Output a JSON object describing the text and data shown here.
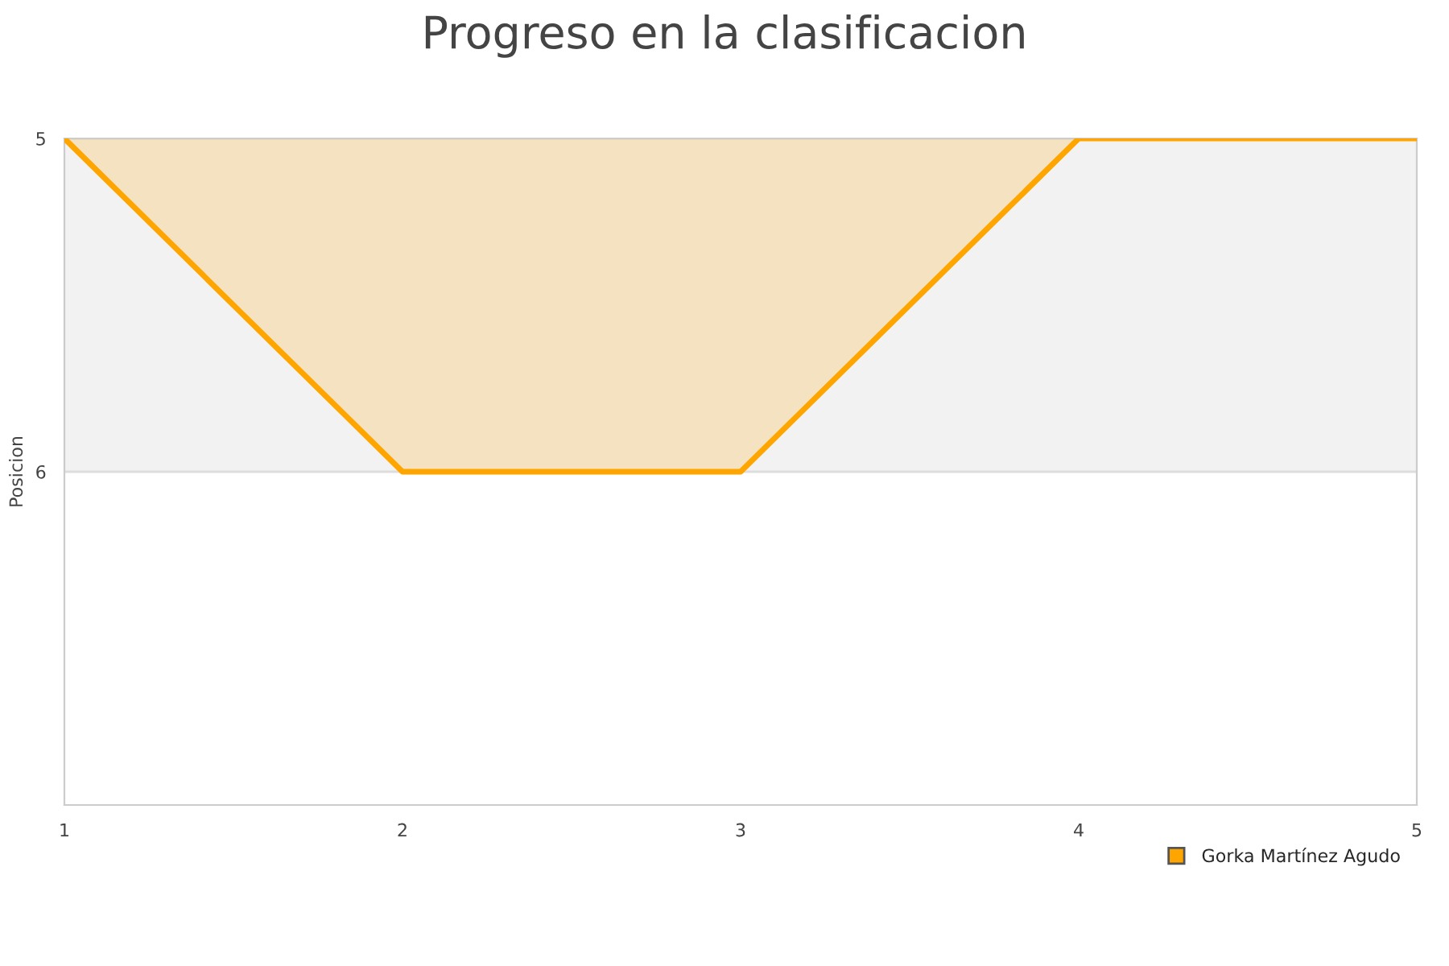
{
  "chart_data": {
    "type": "area",
    "title": "Progreso en la clasificacion",
    "ylabel": "Posicion",
    "x": [
      1,
      2,
      3,
      4,
      5
    ],
    "series": [
      {
        "name": "Gorka Martínez Agudo",
        "color": "#ffa500",
        "values": [
          5,
          6,
          6,
          5,
          5
        ]
      }
    ],
    "xlim": [
      1,
      5
    ],
    "xticks": [
      1,
      2,
      3,
      4,
      5
    ],
    "ylim": [
      7,
      5
    ],
    "yticks": [
      5,
      6
    ],
    "bands": [
      {
        "axis": "y",
        "from": 5,
        "to": 6,
        "color": "#f2f2f2"
      }
    ],
    "grid": "y",
    "legend": "bottom right"
  }
}
